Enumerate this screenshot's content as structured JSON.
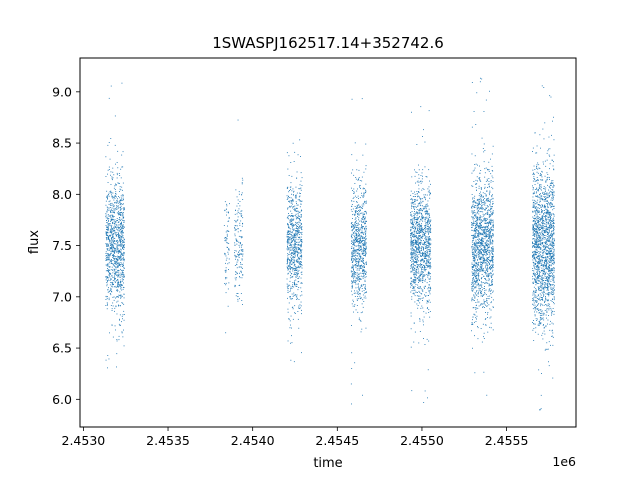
{
  "chart_data": {
    "type": "scatter",
    "title": "1SWASPJ162517.14+352742.6",
    "xlabel": "time",
    "ylabel": "flux",
    "x_offset_label": "1e6",
    "xlim": [
      2.45298,
      2.45591
    ],
    "ylim": [
      5.73,
      9.33
    ],
    "x_ticks": [
      2.453,
      2.4535,
      2.454,
      2.4545,
      2.455,
      2.4555
    ],
    "x_tick_labels": [
      "2.4530",
      "2.4535",
      "2.4540",
      "2.4545",
      "2.4550",
      "2.4555"
    ],
    "y_ticks": [
      6.0,
      6.5,
      7.0,
      7.5,
      8.0,
      8.5,
      9.0
    ],
    "y_tick_labels": [
      "6.0",
      "6.5",
      "7.0",
      "7.5",
      "8.0",
      "8.5",
      "9.0"
    ],
    "grid": false,
    "marker_color": "#1f77b4",
    "clusters": [
      {
        "x_start": 2.45313,
        "x_end": 2.45324,
        "y_center": 7.5,
        "y_spread": 0.32,
        "y_min": 5.9,
        "y_max": 9.1,
        "density": 1.0
      },
      {
        "x_start": 2.45383,
        "x_end": 2.45386,
        "y_center": 7.5,
        "y_spread": 0.25,
        "y_min": 6.25,
        "y_max": 9.05,
        "density": 0.25
      },
      {
        "x_start": 2.45389,
        "x_end": 2.45394,
        "y_center": 7.5,
        "y_spread": 0.3,
        "y_min": 6.85,
        "y_max": 8.95,
        "density": 0.35
      },
      {
        "x_start": 2.4542,
        "x_end": 2.45429,
        "y_center": 7.5,
        "y_spread": 0.3,
        "y_min": 6.3,
        "y_max": 8.8,
        "density": 0.85
      },
      {
        "x_start": 2.45458,
        "x_end": 2.45467,
        "y_center": 7.5,
        "y_spread": 0.3,
        "y_min": 5.93,
        "y_max": 9.0,
        "density": 0.9
      },
      {
        "x_start": 2.45493,
        "x_end": 2.45505,
        "y_center": 7.5,
        "y_spread": 0.3,
        "y_min": 5.93,
        "y_max": 9.0,
        "density": 1.0
      },
      {
        "x_start": 2.45529,
        "x_end": 2.45542,
        "y_center": 7.5,
        "y_spread": 0.33,
        "y_min": 5.9,
        "y_max": 9.15,
        "density": 1.1
      },
      {
        "x_start": 2.45565,
        "x_end": 2.45578,
        "y_center": 7.5,
        "y_spread": 0.38,
        "y_min": 5.9,
        "y_max": 9.15,
        "density": 1.35
      }
    ]
  }
}
